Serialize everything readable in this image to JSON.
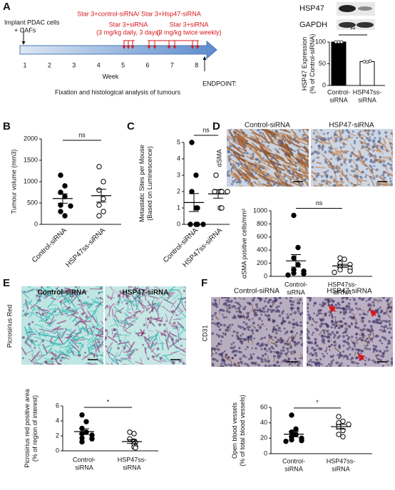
{
  "panel_a": {
    "label": "A",
    "title": "Star 3+control-siRNA/ Star 3+Hsp47-siRNA",
    "implant": [
      "Implant PDAC cells",
      "+ CAFs"
    ],
    "daily": [
      "Star 3+siRNA",
      "(3 mg/kg daily, 3 days)"
    ],
    "weekly": [
      "Star 3+siRNA",
      "(3 mg/kg twice weekly)"
    ],
    "weeks": [
      1,
      2,
      3,
      4,
      5,
      6,
      7,
      8
    ],
    "axis_label": "Week",
    "endpoint": [
      "ENDPOINT:",
      "Fixation and histological analysis of tumours"
    ]
  },
  "blot": {
    "bands": [
      "HSP47",
      "GAPDH"
    ]
  },
  "micrographs": [
    {
      "panel": "D",
      "stain": "αSMA",
      "columns": [
        "Control-siRNA",
        "HSP47-siRNA"
      ]
    },
    {
      "panel": "E",
      "stain": "Picrosirius Red",
      "columns": [
        "Control-siRNA",
        "HSP47-siRNA"
      ]
    },
    {
      "panel": "F",
      "stain": "CD31",
      "columns": [
        "Control-siRNA",
        "HSP47-siRNA"
      ]
    }
  ],
  "chart_data": [
    {
      "type": "bar",
      "ylabel": [
        "HSP47 Expression",
        "(% of Control-siRNA)"
      ],
      "categories": [
        [
          "Control-",
          "siRNA"
        ],
        [
          "HSP47ss-",
          "siRNA"
        ]
      ],
      "values": [
        100,
        55
      ],
      "colors": [
        "#000000",
        "#ffffff"
      ],
      "points": [
        [
          100,
          100,
          100
        ],
        [
          55,
          54,
          56
        ]
      ],
      "ylim": [
        0,
        100
      ],
      "yticks": [
        0,
        50,
        100
      ],
      "annotation": "**"
    },
    {
      "type": "scatter",
      "panel": "B",
      "ylabel": [
        "Tumour volume (mm3)"
      ],
      "categories": [
        "Control-siRNA",
        "HSP47ss-siRNA"
      ],
      "groups": [
        {
          "values": [
            1150,
            900,
            750,
            650,
            450,
            430,
            300,
            200
          ],
          "mean": 604,
          "sem": 110,
          "marker": "filled"
        },
        {
          "values": [
            1350,
            1000,
            800,
            600,
            450,
            300,
            200
          ],
          "mean": 671,
          "sem": 150,
          "marker": "open"
        }
      ],
      "ylim": [
        0,
        2000
      ],
      "yticks": [
        0,
        500,
        1000,
        1500,
        2000
      ],
      "annotation": "ns"
    },
    {
      "type": "scatter",
      "panel": "C",
      "ylabel": [
        "Metastatic Sites per Mouse",
        "(Based on Luminescence)"
      ],
      "categories": [
        "Control-siRNA",
        "HSP47ss-siRNA"
      ],
      "groups": [
        {
          "values": [
            5,
            3,
            2,
            1,
            1,
            0,
            0,
            0,
            0
          ],
          "mean": 1.33,
          "sem": 0.55,
          "marker": "filled"
        },
        {
          "values": [
            3,
            2,
            2,
            2,
            2,
            1,
            1
          ],
          "mean": 1.86,
          "sem": 0.26,
          "marker": "open"
        }
      ],
      "ylim": [
        0,
        5
      ],
      "yticks": [
        0,
        1,
        2,
        3,
        4,
        5
      ],
      "annotation": "ns"
    },
    {
      "type": "scatter",
      "ylabel": [
        "αSMA positive cells/mm²"
      ],
      "categories": [
        [
          "Control-",
          "siRNA"
        ],
        [
          "HSP47ss-",
          "siRNA"
        ]
      ],
      "groups": [
        {
          "values": [
            930,
            440,
            280,
            180,
            100,
            80,
            50,
            40,
            20
          ],
          "mean": 236,
          "sem": 95,
          "marker": "filled"
        },
        {
          "values": [
            280,
            260,
            200,
            180,
            150,
            120,
            100,
            80,
            60
          ],
          "mean": 159,
          "sem": 25,
          "marker": "open"
        }
      ],
      "ylim": [
        0,
        1000
      ],
      "yticks": [
        0,
        200,
        400,
        600,
        800,
        1000
      ],
      "annotation": "ns"
    },
    {
      "type": "scatter",
      "ylabel": [
        "Picrosirius red positive area",
        "(% of region of interest)"
      ],
      "categories": [
        [
          "Control-",
          "siRNA"
        ],
        [
          "HSP47ss-",
          "siRNA"
        ]
      ],
      "groups": [
        {
          "values": [
            4.8,
            3.9,
            3.0,
            2.5,
            2.3,
            2.1,
            1.7,
            1.6,
            1.2
          ],
          "mean": 2.57,
          "sem": 0.38,
          "marker": "filled"
        },
        {
          "values": [
            2.5,
            2.3,
            1.6,
            1.3,
            1.1,
            0.9,
            0.6,
            0.5,
            0.4
          ],
          "mean": 1.24,
          "sem": 0.25,
          "marker": "open"
        }
      ],
      "ylim": [
        0,
        6
      ],
      "yticks": [
        0,
        2,
        4,
        6
      ],
      "annotation": "*"
    },
    {
      "type": "scatter",
      "ylabel": [
        "Open blood vessels",
        "(% of total blood vessels)"
      ],
      "categories": [
        [
          "Control-",
          "siRNA"
        ],
        [
          "HSP47ss-",
          "siRNA"
        ]
      ],
      "groups": [
        {
          "values": [
            50,
            32,
            28,
            25,
            22,
            20,
            18,
            17,
            16
          ],
          "mean": 25.3,
          "sem": 3.5,
          "marker": "filled"
        },
        {
          "values": [
            48,
            42,
            40,
            38,
            35,
            30,
            25,
            22
          ],
          "mean": 35,
          "sem": 3,
          "marker": "open"
        }
      ],
      "ylim": [
        0,
        60
      ],
      "yticks": [
        0,
        20,
        40,
        60
      ],
      "annotation": "*"
    }
  ]
}
